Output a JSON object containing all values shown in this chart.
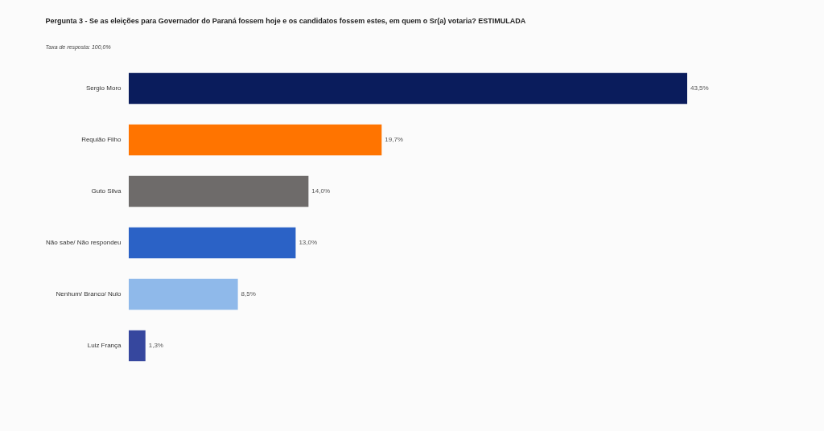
{
  "chart_data": {
    "type": "bar",
    "orientation": "horizontal",
    "title": "Pergunta 3 - Se as eleições para Governador do Paraná fossem hoje e os candidatos fossem estes, em quem o Sr(a) votaria? ESTIMULADA",
    "subtitle": "Taxa de resposta: 100,0%",
    "categories": [
      "Sergio Moro",
      "Requião Filho",
      "Guto Silva",
      "Não sabe/ Não respondeu",
      "Nenhum/ Branco/ Nulo",
      "Luiz França"
    ],
    "values": [
      43.5,
      19.7,
      14.0,
      13.0,
      8.5,
      1.3
    ],
    "colors": [
      "#0a1c5c",
      "#ff7400",
      "#6e6b6a",
      "#2b62c6",
      "#8fb9ea",
      "#36479e"
    ],
    "value_labels": [
      "43,5%",
      "19,7%",
      "14,0%",
      "13,0%",
      "8,5%",
      "1,3%"
    ],
    "tick_labels": "y"
  }
}
